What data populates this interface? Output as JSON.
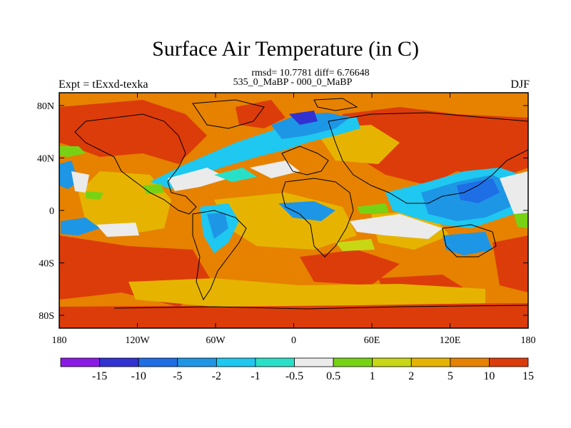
{
  "title": "Surface Air Temperature (in C)",
  "stats_line": "rmsd= 10.7781 diff= 6.76648",
  "comparison": "535_0_MaBP - 000_0_MaBP",
  "experiment": "Expt = tExxd-texka",
  "season": "DJF",
  "x_ticks": [
    "180",
    "120W",
    "60W",
    "0",
    "60E",
    "120E",
    "180"
  ],
  "y_ticks": [
    "80N",
    "40N",
    "0",
    "40S",
    "80S"
  ],
  "colorbar": {
    "colors": [
      "#8c1ae6",
      "#3232d2",
      "#1e6ee6",
      "#1e96e6",
      "#1ec8f0",
      "#28e0c8",
      "#ebebeb",
      "#78d214",
      "#c8d714",
      "#e6b400",
      "#e68200",
      "#dc3c0a"
    ],
    "labels": [
      "-15",
      "-10",
      "-5",
      "-2",
      "-1",
      "-0.5",
      "0.5",
      "1",
      "2",
      "5",
      "10",
      "15"
    ]
  }
}
